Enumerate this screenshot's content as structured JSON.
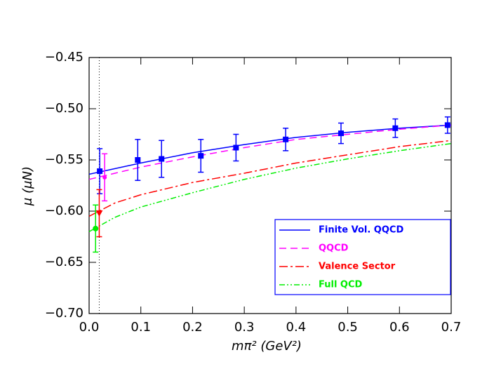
{
  "chart_data": {
    "type": "line",
    "x_label": "mπ² (GeV²)",
    "y_label": "μ (μN)",
    "xlim": [
      0,
      0.7
    ],
    "ylim": [
      -0.7,
      -0.45
    ],
    "xticks": [
      {
        "value": 0,
        "label": "0.0"
      },
      0.1,
      0.2,
      0.3,
      0.4,
      0.5,
      0.6,
      0.7
    ],
    "yticks": [
      {
        "value": -0.7,
        "label": "−0.70"
      },
      {
        "value": -0.65,
        "label": "−0.65"
      },
      {
        "value": -0.6,
        "label": "−0.60"
      },
      {
        "value": -0.55,
        "label": "−0.55"
      },
      {
        "value": -0.5,
        "label": "−0.50"
      },
      {
        "value": -0.45,
        "label": "−0.45"
      }
    ],
    "vline_x": 0.0196,
    "series": [
      {
        "name": "Finite Vol. QQCD",
        "color": "#0000ff",
        "dash": "solid",
        "x": [
          0,
          0.1,
          0.2,
          0.3,
          0.4,
          0.5,
          0.6,
          0.7
        ],
        "values": [
          -0.564,
          -0.553,
          -0.543,
          -0.535,
          -0.528,
          -0.523,
          -0.519,
          -0.516
        ]
      },
      {
        "name": "QQCD",
        "color": "#ff00ff",
        "dash": "dashed",
        "x": [
          0,
          0.1,
          0.2,
          0.3,
          0.4,
          0.5,
          0.6,
          0.7
        ],
        "values": [
          -0.569,
          -0.557,
          -0.547,
          -0.538,
          -0.53,
          -0.525,
          -0.52,
          -0.516
        ]
      },
      {
        "name": "Valence Sector",
        "color": "#ff0000",
        "dash": "dashdot",
        "x": [
          0,
          0.05,
          0.1,
          0.2,
          0.3,
          0.4,
          0.5,
          0.6,
          0.7
        ],
        "values": [
          -0.605,
          -0.592,
          -0.584,
          -0.572,
          -0.563,
          -0.553,
          -0.545,
          -0.537,
          -0.531
        ]
      },
      {
        "name": "Full QCD",
        "color": "#00ee00",
        "dash": "dashdotdot",
        "x": [
          0,
          0.05,
          0.1,
          0.2,
          0.3,
          0.4,
          0.5,
          0.6,
          0.7
        ],
        "values": [
          -0.62,
          -0.606,
          -0.596,
          -0.582,
          -0.569,
          -0.558,
          -0.549,
          -0.541,
          -0.534
        ]
      }
    ],
    "points": [
      {
        "color": "#0000ff",
        "marker": "square",
        "x": [
          0.0205,
          0.094,
          0.14,
          0.216,
          0.284,
          0.38,
          0.487,
          0.592,
          0.693
        ],
        "values": [
          -0.561,
          -0.55,
          -0.549,
          -0.546,
          -0.538,
          -0.53,
          -0.524,
          -0.519,
          -0.516
        ],
        "errors": [
          0.022,
          0.02,
          0.018,
          0.016,
          0.013,
          0.011,
          0.01,
          0.009,
          0.008
        ]
      },
      {
        "color": "#ff00ff",
        "marker": "circle-small",
        "x": [
          0.03
        ],
        "values": [
          -0.567
        ],
        "errors": [
          0.023
        ]
      },
      {
        "color": "#ff0000",
        "marker": "triangle-down",
        "x": [
          0.0196
        ],
        "values": [
          -0.602
        ],
        "errors": [
          0.023
        ]
      },
      {
        "color": "#00ee00",
        "marker": "circle",
        "x": [
          0.0125
        ],
        "values": [
          -0.617
        ],
        "errors": [
          0.023
        ]
      }
    ],
    "legend": "lower-right"
  }
}
